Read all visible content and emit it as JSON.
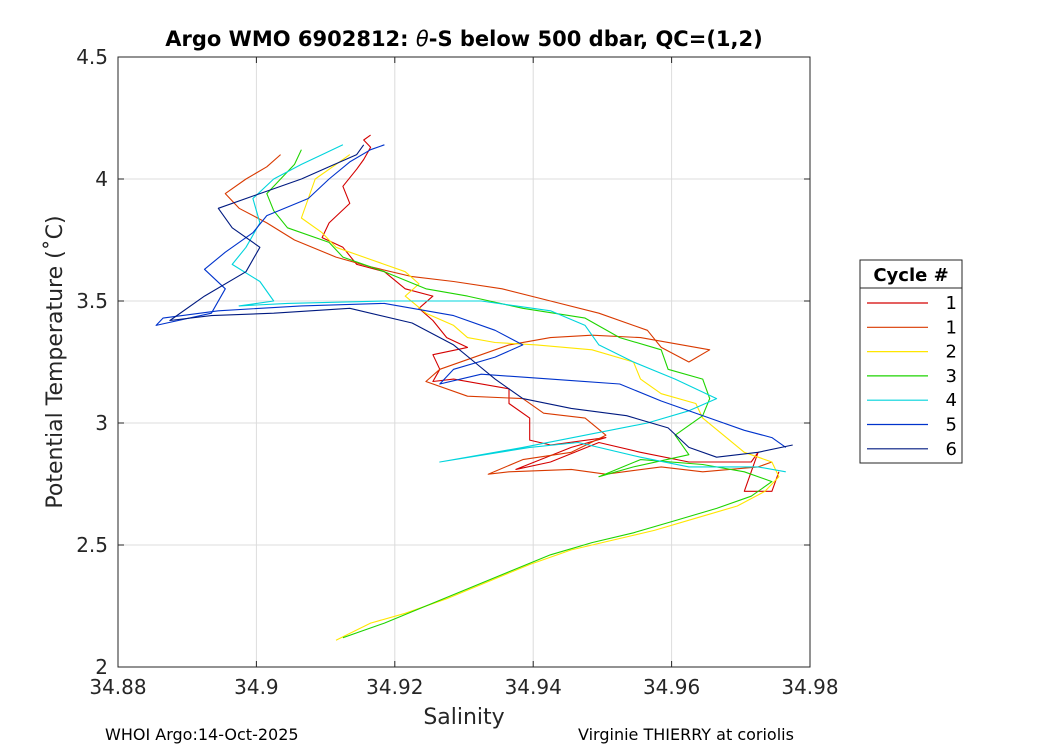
{
  "chart_data": {
    "type": "line",
    "title_prefix": "Argo WMO 6902812: ",
    "title_symbol": "θ",
    "title_suffix": "-S below 500 dbar,  QC=(1,2)",
    "xlabel": "Salinity",
    "ylabel": "Potential Temperature (˚C)",
    "xlim": [
      34.88,
      34.98
    ],
    "ylim": [
      2,
      4.5
    ],
    "xticks": [
      34.88,
      34.9,
      34.92,
      34.94,
      34.96,
      34.98
    ],
    "xtick_labels": [
      "34.88",
      "34.9",
      "34.92",
      "34.94",
      "34.96",
      "34.98"
    ],
    "yticks": [
      2,
      2.5,
      3,
      3.5,
      4,
      4.5
    ],
    "ytick_labels": [
      "2",
      "2.5",
      "3",
      "3.5",
      "4",
      "4.5"
    ],
    "grid": true,
    "legend_title": "Cycle #",
    "legend_position": "outside-right",
    "series": [
      {
        "name": "1",
        "color": "#d40000",
        "points": [
          [
            34.9755,
            2.8
          ],
          [
            34.9745,
            2.72
          ],
          [
            34.9705,
            2.72
          ],
          [
            34.9725,
            2.88
          ],
          [
            34.9715,
            2.84
          ],
          [
            34.9625,
            2.84
          ],
          [
            34.9555,
            2.88
          ],
          [
            34.9495,
            2.92
          ],
          [
            34.9425,
            2.84
          ],
          [
            34.9375,
            2.81
          ],
          [
            34.9455,
            2.9
          ],
          [
            34.9505,
            2.94
          ],
          [
            34.9425,
            2.91
          ],
          [
            34.9395,
            2.93
          ],
          [
            34.9395,
            3.02
          ],
          [
            34.9365,
            3.08
          ],
          [
            34.9365,
            3.14
          ],
          [
            34.9285,
            3.18
          ],
          [
            34.9255,
            3.17
          ],
          [
            34.9265,
            3.22
          ],
          [
            34.9255,
            3.28
          ],
          [
            34.9305,
            3.31
          ],
          [
            34.9275,
            3.35
          ],
          [
            34.9255,
            3.42
          ],
          [
            34.9235,
            3.47
          ],
          [
            34.9255,
            3.52
          ],
          [
            34.9215,
            3.55
          ],
          [
            34.9185,
            3.62
          ],
          [
            34.9145,
            3.65
          ],
          [
            34.9125,
            3.72
          ],
          [
            34.9095,
            3.76
          ],
          [
            34.9105,
            3.82
          ],
          [
            34.9135,
            3.9
          ],
          [
            34.9125,
            3.97
          ],
          [
            34.9145,
            4.04
          ],
          [
            34.9155,
            4.08
          ],
          [
            34.9165,
            4.13
          ],
          [
            34.9155,
            4.16
          ],
          [
            34.9165,
            4.18
          ]
        ]
      },
      {
        "name": "1",
        "color": "#d93a00",
        "points": [
          [
            34.9745,
            2.84
          ],
          [
            34.9725,
            2.82
          ],
          [
            34.9645,
            2.8
          ],
          [
            34.9585,
            2.82
          ],
          [
            34.9505,
            2.79
          ],
          [
            34.9455,
            2.81
          ],
          [
            34.9365,
            2.8
          ],
          [
            34.9335,
            2.79
          ],
          [
            34.9385,
            2.85
          ],
          [
            34.9455,
            2.88
          ],
          [
            34.9505,
            2.95
          ],
          [
            34.9475,
            3.02
          ],
          [
            34.9415,
            3.04
          ],
          [
            34.9385,
            3.1
          ],
          [
            34.9305,
            3.11
          ],
          [
            34.9245,
            3.17
          ],
          [
            34.9265,
            3.22
          ],
          [
            34.9325,
            3.28
          ],
          [
            34.9365,
            3.32
          ],
          [
            34.9425,
            3.35
          ],
          [
            34.9485,
            3.36
          ],
          [
            34.9555,
            3.35
          ],
          [
            34.9655,
            3.3
          ],
          [
            34.9625,
            3.25
          ],
          [
            34.9585,
            3.31
          ],
          [
            34.9565,
            3.38
          ],
          [
            34.9495,
            3.45
          ],
          [
            34.9425,
            3.5
          ],
          [
            34.9355,
            3.55
          ],
          [
            34.9285,
            3.58
          ],
          [
            34.9225,
            3.6
          ],
          [
            34.9165,
            3.64
          ],
          [
            34.9115,
            3.68
          ],
          [
            34.9055,
            3.75
          ],
          [
            34.9015,
            3.82
          ],
          [
            34.8975,
            3.88
          ],
          [
            34.8955,
            3.94
          ],
          [
            34.8985,
            4.0
          ],
          [
            34.9015,
            4.05
          ],
          [
            34.9035,
            4.1
          ]
        ]
      },
      {
        "name": "2",
        "color": "#ffe600",
        "points": [
          [
            34.9115,
            2.11
          ],
          [
            34.9165,
            2.18
          ],
          [
            34.9215,
            2.22
          ],
          [
            34.9275,
            2.28
          ],
          [
            34.9335,
            2.35
          ],
          [
            34.9395,
            2.42
          ],
          [
            34.9455,
            2.48
          ],
          [
            34.9515,
            2.52
          ],
          [
            34.9575,
            2.56
          ],
          [
            34.9635,
            2.61
          ],
          [
            34.9695,
            2.66
          ],
          [
            34.9735,
            2.72
          ],
          [
            34.9755,
            2.78
          ],
          [
            34.9745,
            2.84
          ],
          [
            34.9705,
            2.88
          ],
          [
            34.9675,
            2.95
          ],
          [
            34.9645,
            3.02
          ],
          [
            34.9635,
            3.08
          ],
          [
            34.9585,
            3.12
          ],
          [
            34.9555,
            3.18
          ],
          [
            34.9545,
            3.25
          ],
          [
            34.9485,
            3.3
          ],
          [
            34.9405,
            3.32
          ],
          [
            34.9345,
            3.33
          ],
          [
            34.9305,
            3.35
          ],
          [
            34.9285,
            3.4
          ],
          [
            34.9245,
            3.45
          ],
          [
            34.9215,
            3.52
          ],
          [
            34.9235,
            3.57
          ],
          [
            34.9215,
            3.62
          ],
          [
            34.9165,
            3.67
          ],
          [
            34.9115,
            3.72
          ],
          [
            34.9095,
            3.78
          ],
          [
            34.9065,
            3.84
          ],
          [
            34.9075,
            3.92
          ],
          [
            34.9085,
            4.0
          ],
          [
            34.9115,
            4.06
          ],
          [
            34.9135,
            4.1
          ]
        ]
      },
      {
        "name": "3",
        "color": "#1ed400",
        "points": [
          [
            34.9125,
            2.12
          ],
          [
            34.9185,
            2.18
          ],
          [
            34.9245,
            2.25
          ],
          [
            34.9305,
            2.32
          ],
          [
            34.9365,
            2.39
          ],
          [
            34.9425,
            2.46
          ],
          [
            34.9485,
            2.51
          ],
          [
            34.9545,
            2.55
          ],
          [
            34.9605,
            2.6
          ],
          [
            34.9665,
            2.65
          ],
          [
            34.9715,
            2.7
          ],
          [
            34.9745,
            2.76
          ],
          [
            34.9705,
            2.8
          ],
          [
            34.9645,
            2.83
          ],
          [
            34.9555,
            2.85
          ],
          [
            34.9495,
            2.78
          ],
          [
            34.9545,
            2.82
          ],
          [
            34.9625,
            2.87
          ],
          [
            34.9605,
            2.95
          ],
          [
            34.9645,
            3.03
          ],
          [
            34.9655,
            3.1
          ],
          [
            34.9645,
            3.18
          ],
          [
            34.9595,
            3.22
          ],
          [
            34.9585,
            3.3
          ],
          [
            34.9525,
            3.35
          ],
          [
            34.9475,
            3.43
          ],
          [
            34.9385,
            3.47
          ],
          [
            34.9305,
            3.52
          ],
          [
            34.9245,
            3.55
          ],
          [
            34.9185,
            3.62
          ],
          [
            34.9125,
            3.68
          ],
          [
            34.9105,
            3.74
          ],
          [
            34.9045,
            3.8
          ],
          [
            34.9025,
            3.87
          ],
          [
            34.9015,
            3.94
          ],
          [
            34.9035,
            4.0
          ],
          [
            34.9055,
            4.06
          ],
          [
            34.9065,
            4.12
          ]
        ]
      },
      {
        "name": "4",
        "color": "#00d4dc",
        "points": [
          [
            34.9765,
            2.8
          ],
          [
            34.9725,
            2.82
          ],
          [
            34.9625,
            2.82
          ],
          [
            34.9555,
            2.86
          ],
          [
            34.9465,
            2.92
          ],
          [
            34.9395,
            2.9
          ],
          [
            34.9265,
            2.84
          ],
          [
            34.9385,
            2.9
          ],
          [
            34.9475,
            2.95
          ],
          [
            34.9565,
            3.0
          ],
          [
            34.9625,
            3.05
          ],
          [
            34.9665,
            3.1
          ],
          [
            34.9605,
            3.18
          ],
          [
            34.9545,
            3.25
          ],
          [
            34.9495,
            3.32
          ],
          [
            34.9475,
            3.4
          ],
          [
            34.9425,
            3.46
          ],
          [
            34.9325,
            3.5
          ],
          [
            34.9185,
            3.5
          ],
          [
            34.9045,
            3.49
          ],
          [
            34.8975,
            3.48
          ],
          [
            34.9025,
            3.5
          ],
          [
            34.9005,
            3.58
          ],
          [
            34.8965,
            3.65
          ],
          [
            34.8985,
            3.72
          ],
          [
            34.9005,
            3.82
          ],
          [
            34.8995,
            3.92
          ],
          [
            34.9025,
            4.0
          ],
          [
            34.9065,
            4.06
          ],
          [
            34.9095,
            4.1
          ],
          [
            34.9125,
            4.14
          ]
        ]
      },
      {
        "name": "5",
        "color": "#0033cc",
        "points": [
          [
            34.9765,
            2.9
          ],
          [
            34.9745,
            2.94
          ],
          [
            34.9705,
            2.97
          ],
          [
            34.9655,
            3.02
          ],
          [
            34.9585,
            3.09
          ],
          [
            34.9525,
            3.16
          ],
          [
            34.9425,
            3.18
          ],
          [
            34.9325,
            3.2
          ],
          [
            34.9265,
            3.16
          ],
          [
            34.9285,
            3.22
          ],
          [
            34.9345,
            3.27
          ],
          [
            34.9385,
            3.32
          ],
          [
            34.9345,
            3.38
          ],
          [
            34.9285,
            3.44
          ],
          [
            34.9185,
            3.49
          ],
          [
            34.9065,
            3.48
          ],
          [
            34.8945,
            3.46
          ],
          [
            34.8865,
            3.43
          ],
          [
            34.8855,
            3.4
          ],
          [
            34.8935,
            3.45
          ],
          [
            34.8955,
            3.55
          ],
          [
            34.8925,
            3.63
          ],
          [
            34.8955,
            3.7
          ],
          [
            34.8995,
            3.78
          ],
          [
            34.9015,
            3.85
          ],
          [
            34.9075,
            3.92
          ],
          [
            34.9105,
            4.0
          ],
          [
            34.9135,
            4.07
          ],
          [
            34.9165,
            4.12
          ],
          [
            34.9185,
            4.14
          ]
        ]
      },
      {
        "name": "6",
        "color": "#001a80",
        "points": [
          [
            34.9775,
            2.91
          ],
          [
            34.9725,
            2.88
          ],
          [
            34.9665,
            2.86
          ],
          [
            34.9625,
            2.9
          ],
          [
            34.9595,
            2.98
          ],
          [
            34.9535,
            3.03
          ],
          [
            34.9455,
            3.06
          ],
          [
            34.9385,
            3.1
          ],
          [
            34.9345,
            3.18
          ],
          [
            34.9315,
            3.25
          ],
          [
            34.9285,
            3.32
          ],
          [
            34.9225,
            3.41
          ],
          [
            34.9135,
            3.47
          ],
          [
            34.9025,
            3.45
          ],
          [
            34.8935,
            3.44
          ],
          [
            34.8875,
            3.42
          ],
          [
            34.8925,
            3.52
          ],
          [
            34.8985,
            3.62
          ],
          [
            34.9005,
            3.72
          ],
          [
            34.8965,
            3.8
          ],
          [
            34.8945,
            3.88
          ],
          [
            34.9005,
            3.94
          ],
          [
            34.9065,
            4.0
          ],
          [
            34.9105,
            4.05
          ],
          [
            34.9145,
            4.1
          ],
          [
            34.9155,
            4.14
          ]
        ]
      }
    ]
  },
  "footer": {
    "left": "WHOI Argo:14-Oct-2025",
    "right": "Virginie THIERRY at coriolis"
  }
}
